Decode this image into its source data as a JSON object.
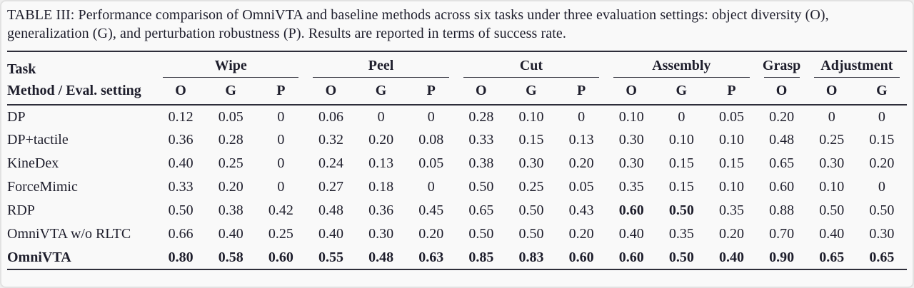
{
  "caption": "TABLE III: Performance comparison of OmniVTA and baseline methods across six tasks under three evaluation settings: object diversity (O), generalization (G), and perturbation robustness (P). Results are reported in terms of success rate.",
  "colors": {
    "text": "#1e1e2c",
    "rule": "#2e2e3a",
    "background": "#f9f9f9"
  },
  "table": {
    "corner": {
      "row1": "Task",
      "row2": "Method / Eval. setting"
    },
    "groups": [
      {
        "label": "Wipe",
        "cols": [
          "O",
          "G",
          "P"
        ]
      },
      {
        "label": "Peel",
        "cols": [
          "O",
          "G",
          "P"
        ]
      },
      {
        "label": "Cut",
        "cols": [
          "O",
          "G",
          "P"
        ]
      },
      {
        "label": "Assembly",
        "cols": [
          "O",
          "G",
          "P"
        ]
      },
      {
        "label": "Grasp",
        "cols": [
          "O"
        ]
      },
      {
        "label": "Adjustment",
        "cols": [
          "O",
          "G"
        ]
      }
    ],
    "rows": [
      {
        "method": "DP",
        "values": [
          "0.12",
          "0.05",
          "0",
          "0.06",
          "0",
          "0",
          "0.28",
          "0.10",
          "0",
          "0.10",
          "0",
          "0.05",
          "0.20",
          "0",
          "0"
        ]
      },
      {
        "method": "DP+tactile",
        "values": [
          "0.36",
          "0.28",
          "0",
          "0.32",
          "0.20",
          "0.08",
          "0.33",
          "0.15",
          "0.13",
          "0.30",
          "0.10",
          "0.10",
          "0.48",
          "0.25",
          "0.15"
        ]
      },
      {
        "method": "KineDex",
        "values": [
          "0.40",
          "0.25",
          "0",
          "0.24",
          "0.13",
          "0.05",
          "0.38",
          "0.30",
          "0.20",
          "0.30",
          "0.15",
          "0.15",
          "0.65",
          "0.30",
          "0.20"
        ]
      },
      {
        "method": "ForceMimic",
        "values": [
          "0.33",
          "0.20",
          "0",
          "0.27",
          "0.18",
          "0",
          "0.50",
          "0.25",
          "0.05",
          "0.35",
          "0.15",
          "0.10",
          "0.60",
          "0.10",
          "0"
        ]
      },
      {
        "method": "RDP",
        "values": [
          "0.50",
          "0.38",
          "0.42",
          "0.48",
          "0.36",
          "0.45",
          "0.65",
          "0.50",
          "0.43",
          "0.60",
          "0.50",
          "0.35",
          "0.88",
          "0.50",
          "0.50"
        ],
        "bold_value_indices": [
          9,
          10
        ]
      },
      {
        "method": "OmniVTA w/o RLTC",
        "values": [
          "0.66",
          "0.40",
          "0.25",
          "0.40",
          "0.30",
          "0.20",
          "0.50",
          "0.50",
          "0.20",
          "0.40",
          "0.35",
          "0.20",
          "0.70",
          "0.40",
          "0.30"
        ]
      },
      {
        "method": "OmniVTA",
        "values": [
          "0.80",
          "0.58",
          "0.60",
          "0.55",
          "0.48",
          "0.63",
          "0.85",
          "0.83",
          "0.60",
          "0.60",
          "0.50",
          "0.40",
          "0.90",
          "0.65",
          "0.65"
        ],
        "bold_row": true
      }
    ]
  }
}
